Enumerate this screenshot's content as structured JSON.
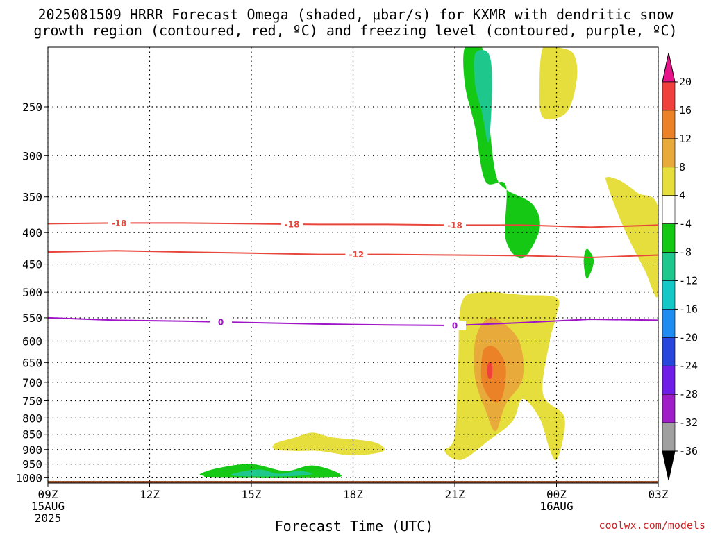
{
  "title": {
    "line1": "2025081509 HRRR Forecast Omega (shaded, μbar/s) for KXMR with dendritic snow",
    "line2": "growth region (contoured, red, ºC) and freezing level (contoured, purple, ºC)"
  },
  "credit": "coolwx.com/models",
  "chart_data": {
    "type": "heatmap",
    "title": "2025081509 HRRR Forecast Omega (shaded, μbar/s) for KXMR with dendritic snow growth region (contoured, red, ºC) and freezing level (contoured, purple, ºC)",
    "xlabel": "Forecast Time (UTC)",
    "ylabel": "",
    "x_range_hours": [
      0,
      18
    ],
    "y_scale": "log-pressure",
    "y_range_mb": [
      1020,
      200
    ],
    "grid": true,
    "x_ticks": [
      {
        "h": 0,
        "label": "09Z",
        "sub1": "15AUG",
        "sub2": "2025"
      },
      {
        "h": 3,
        "label": "12Z",
        "sub1": "",
        "sub2": ""
      },
      {
        "h": 6,
        "label": "15Z",
        "sub1": "",
        "sub2": ""
      },
      {
        "h": 9,
        "label": "18Z",
        "sub1": "",
        "sub2": ""
      },
      {
        "h": 12,
        "label": "21Z",
        "sub1": "",
        "sub2": ""
      },
      {
        "h": 15,
        "label": "00Z",
        "sub1": "16AUG",
        "sub2": ""
      },
      {
        "h": 18,
        "label": "03Z",
        "sub1": "",
        "sub2": ""
      }
    ],
    "y_ticks": [
      {
        "p": 250,
        "label": "250"
      },
      {
        "p": 300,
        "label": "300"
      },
      {
        "p": 350,
        "label": "350"
      },
      {
        "p": 400,
        "label": "400"
      },
      {
        "p": 450,
        "label": "450"
      },
      {
        "p": 500,
        "label": "500"
      },
      {
        "p": 550,
        "label": "550"
      },
      {
        "p": 600,
        "label": "600"
      },
      {
        "p": 650,
        "label": "650"
      },
      {
        "p": 700,
        "label": "700"
      },
      {
        "p": 750,
        "label": "750"
      },
      {
        "p": 800,
        "label": "800"
      },
      {
        "p": 850,
        "label": "850"
      },
      {
        "p": 900,
        "label": "900"
      },
      {
        "p": 950,
        "label": "950"
      },
      {
        "p": 1000,
        "label": "1000"
      }
    ],
    "colorbar": [
      {
        "lo": 20,
        "hi": null,
        "color": "#e8148c",
        "label": "20"
      },
      {
        "lo": 16,
        "hi": 20,
        "color": "#f0403c",
        "label": "16"
      },
      {
        "lo": 12,
        "hi": 16,
        "color": "#ec8228",
        "label": "12"
      },
      {
        "lo": 8,
        "hi": 12,
        "color": "#e8aa3a",
        "label": "8"
      },
      {
        "lo": 4,
        "hi": 8,
        "color": "#e6de3c",
        "label": "4"
      },
      {
        "lo": -4,
        "hi": 4,
        "color": "#ffffff",
        "label": "-4"
      },
      {
        "lo": -8,
        "hi": -4,
        "color": "#14c814",
        "label": "-8"
      },
      {
        "lo": -12,
        "hi": -8,
        "color": "#1ec88c",
        "label": "-12"
      },
      {
        "lo": -16,
        "hi": -12,
        "color": "#14c8c8",
        "label": "-16"
      },
      {
        "lo": -20,
        "hi": -16,
        "color": "#1e8cf0",
        "label": "-20"
      },
      {
        "lo": -24,
        "hi": -20,
        "color": "#2846dc",
        "label": "-24"
      },
      {
        "lo": -28,
        "hi": -24,
        "color": "#6e1ee6",
        "label": "-28"
      },
      {
        "lo": -32,
        "hi": -28,
        "color": "#a01ec8",
        "label": "-32"
      },
      {
        "lo": -36,
        "hi": -32,
        "color": "#a0a0a0",
        "label": "-36"
      },
      {
        "lo": null,
        "hi": -36,
        "color": "#000000",
        "label": ""
      }
    ],
    "omega_regions": [
      {
        "name": "upper-ascent",
        "value": -8,
        "color": "#14c814",
        "points": [
          [
            12.3,
            200
          ],
          [
            12.8,
            200
          ],
          [
            13.0,
            260
          ],
          [
            13.2,
            320
          ],
          [
            13.5,
            340
          ],
          [
            14.3,
            360
          ],
          [
            14.5,
            395
          ],
          [
            14.0,
            440
          ],
          [
            13.5,
            410
          ],
          [
            13.5,
            335
          ],
          [
            12.9,
            330
          ],
          [
            12.6,
            270
          ],
          [
            12.3,
            230
          ]
        ]
      },
      {
        "name": "upper-ascent-core",
        "value": -12,
        "color": "#1ec88c",
        "points": [
          [
            12.6,
            205
          ],
          [
            13.0,
            205
          ],
          [
            13.1,
            230
          ],
          [
            13.0,
            285
          ],
          [
            12.8,
            255
          ],
          [
            12.6,
            230
          ]
        ]
      },
      {
        "name": "small-ascent",
        "value": -8,
        "color": "#14c814",
        "points": [
          [
            15.9,
            425
          ],
          [
            16.1,
            445
          ],
          [
            15.9,
            475
          ],
          [
            15.8,
            445
          ]
        ]
      },
      {
        "name": "lower-ascent",
        "value": -8,
        "color": "#14c814",
        "points": [
          [
            4.5,
            985
          ],
          [
            5.0,
            965
          ],
          [
            6.0,
            950
          ],
          [
            7.0,
            975
          ],
          [
            7.8,
            955
          ],
          [
            8.6,
            985
          ],
          [
            8.2,
            1000
          ],
          [
            5.0,
            1000
          ],
          [
            4.6,
            993
          ]
        ]
      },
      {
        "name": "lower-ascent-core",
        "value": -12,
        "color": "#1ec88c",
        "points": [
          [
            5.4,
            990
          ],
          [
            5.8,
            975
          ],
          [
            6.3,
            970
          ],
          [
            6.8,
            985
          ],
          [
            7.4,
            975
          ],
          [
            7.8,
            985
          ],
          [
            7.3,
            993
          ],
          [
            6.0,
            995
          ]
        ]
      },
      {
        "name": "upper-subsidence-1",
        "value": 4,
        "color": "#e6de3c",
        "points": [
          [
            14.6,
            200
          ],
          [
            15.0,
            200
          ],
          [
            15.5,
            205
          ],
          [
            15.6,
            225
          ],
          [
            15.3,
            255
          ],
          [
            14.6,
            260
          ],
          [
            14.5,
            230
          ]
        ]
      },
      {
        "name": "upper-subsidence-2",
        "value": 4,
        "color": "#e6de3c",
        "points": [
          [
            16.5,
            325
          ],
          [
            16.9,
            330
          ],
          [
            17.4,
            345
          ],
          [
            18,
            365
          ],
          [
            18,
            505
          ],
          [
            17.6,
            460
          ],
          [
            17.0,
            395
          ],
          [
            16.5,
            335
          ]
        ]
      },
      {
        "name": "mid-subsidence",
        "value": 4,
        "color": "#e6de3c",
        "points": [
          [
            12.2,
            520
          ],
          [
            12.8,
            500
          ],
          [
            14.0,
            505
          ],
          [
            15.0,
            510
          ],
          [
            15.0,
            545
          ],
          [
            14.8,
            600
          ],
          [
            14.6,
            730
          ],
          [
            15.2,
            790
          ],
          [
            15.2,
            860
          ],
          [
            15.0,
            935
          ],
          [
            14.8,
            900
          ],
          [
            14.5,
            800
          ],
          [
            14.0,
            745
          ],
          [
            13.7,
            810
          ],
          [
            13.0,
            870
          ],
          [
            12.2,
            935
          ],
          [
            11.7,
            905
          ],
          [
            12.0,
            855
          ],
          [
            12.1,
            650
          ]
        ]
      },
      {
        "name": "mid-subsidence-8",
        "value": 8,
        "color": "#e8aa3a",
        "points": [
          [
            12.9,
            555
          ],
          [
            13.3,
            555
          ],
          [
            13.9,
            600
          ],
          [
            14.0,
            690
          ],
          [
            13.5,
            760
          ],
          [
            13.2,
            840
          ],
          [
            12.9,
            775
          ],
          [
            12.6,
            690
          ],
          [
            12.6,
            600
          ]
        ]
      },
      {
        "name": "mid-subsidence-12",
        "value": 12,
        "color": "#ec8228",
        "points": [
          [
            12.9,
            615
          ],
          [
            13.2,
            615
          ],
          [
            13.5,
            660
          ],
          [
            13.4,
            740
          ],
          [
            13.1,
            750
          ],
          [
            12.8,
            700
          ],
          [
            12.8,
            640
          ]
        ]
      },
      {
        "name": "mid-subsidence-16",
        "value": 16,
        "color": "#f0403c",
        "points": [
          [
            13.0,
            650
          ],
          [
            13.1,
            655
          ],
          [
            13.1,
            685
          ],
          [
            13.0,
            690
          ],
          [
            12.95,
            670
          ]
        ]
      },
      {
        "name": "low-subsidence",
        "value": 4,
        "color": "#e6de3c",
        "points": [
          [
            6.7,
            880
          ],
          [
            7.3,
            860
          ],
          [
            7.8,
            845
          ],
          [
            8.4,
            860
          ],
          [
            9.6,
            875
          ],
          [
            9.9,
            905
          ],
          [
            9.0,
            920
          ],
          [
            8.0,
            905
          ],
          [
            7.3,
            905
          ],
          [
            6.7,
            900
          ]
        ]
      }
    ],
    "contours": [
      {
        "name": "-18C",
        "label": "-18",
        "color": "#e8463c",
        "points": [
          [
            0,
            387
          ],
          [
            2,
            386
          ],
          [
            4,
            386
          ],
          [
            6,
            387
          ],
          [
            8,
            388
          ],
          [
            10,
            388
          ],
          [
            12,
            389
          ],
          [
            14,
            389
          ],
          [
            16,
            392
          ],
          [
            18,
            389
          ]
        ],
        "label_x": [
          2.1,
          7.2,
          12.0
        ]
      },
      {
        "name": "-12C",
        "label": "-12",
        "color": "#e8463c",
        "points": [
          [
            0,
            430
          ],
          [
            2,
            428
          ],
          [
            4,
            430
          ],
          [
            6,
            432
          ],
          [
            8,
            434
          ],
          [
            10,
            434
          ],
          [
            12,
            435
          ],
          [
            14,
            436
          ],
          [
            16,
            439
          ],
          [
            18,
            435
          ]
        ],
        "label_x": [
          9.1
        ]
      },
      {
        "name": "0C",
        "label": "0",
        "color": "#a014c8",
        "points": [
          [
            0,
            550
          ],
          [
            2,
            555
          ],
          [
            4,
            557
          ],
          [
            6,
            560
          ],
          [
            8,
            563
          ],
          [
            10,
            565
          ],
          [
            12,
            566
          ],
          [
            14,
            560
          ],
          [
            16,
            553
          ],
          [
            18,
            555
          ]
        ],
        "label_x": [
          5.1,
          12.0
        ]
      }
    ],
    "terrain": {
      "color": "#a0522d",
      "top_mb": 1012
    }
  }
}
